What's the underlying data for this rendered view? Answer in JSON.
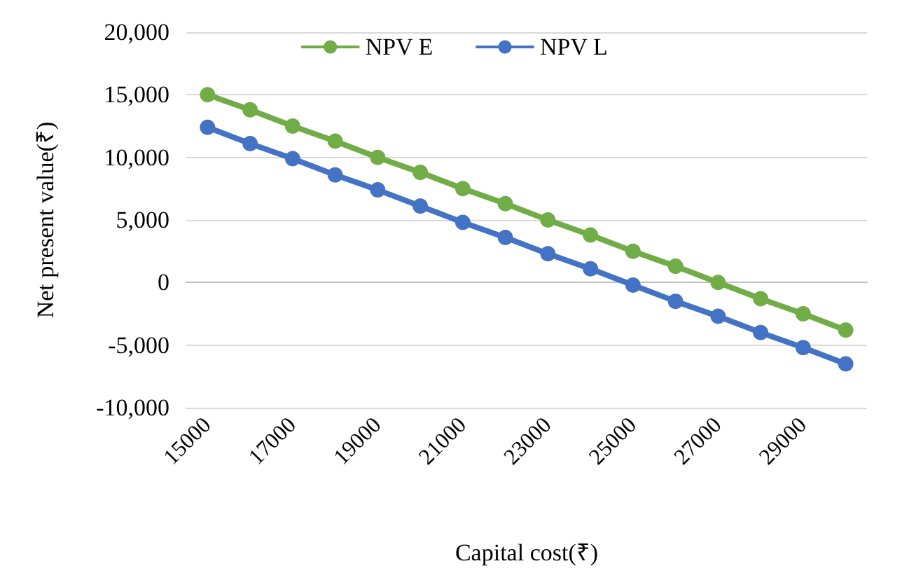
{
  "chart_data": {
    "type": "line",
    "xlabel": "Capital cost(₹)",
    "ylabel": "Net present value(₹)",
    "categories": [
      "15000",
      null,
      "17000",
      null,
      "19000",
      null,
      "21000",
      null,
      "23000",
      null,
      "25000",
      null,
      "27000",
      null,
      "29000",
      null
    ],
    "series": [
      {
        "name": "NPV E",
        "color": "#70ad47",
        "values": [
          15000,
          13800,
          12500,
          11300,
          10000,
          8800,
          7500,
          6300,
          5000,
          3800,
          2500,
          1300,
          0,
          -1300,
          -2500,
          -3800
        ]
      },
      {
        "name": "NPV L",
        "color": "#4472c4",
        "values": [
          12400,
          11100,
          9900,
          8600,
          7400,
          6100,
          4800,
          3600,
          2300,
          1100,
          -200,
          -1500,
          -2700,
          -4000,
          -5200,
          -6500
        ]
      }
    ],
    "ylim": [
      -10000,
      20000
    ],
    "yticks": [
      {
        "value": -10000,
        "label": "-10,000"
      },
      {
        "value": -5000,
        "label": "-5,000"
      },
      {
        "value": 0,
        "label": "0"
      },
      {
        "value": 5000,
        "label": "5,000"
      },
      {
        "value": 10000,
        "label": "10,000"
      },
      {
        "value": 15000,
        "label": "15,000"
      },
      {
        "value": 20000,
        "label": "20,000"
      }
    ],
    "grid": "y",
    "legend": "top",
    "marker": "circle",
    "line_style": "solid"
  }
}
